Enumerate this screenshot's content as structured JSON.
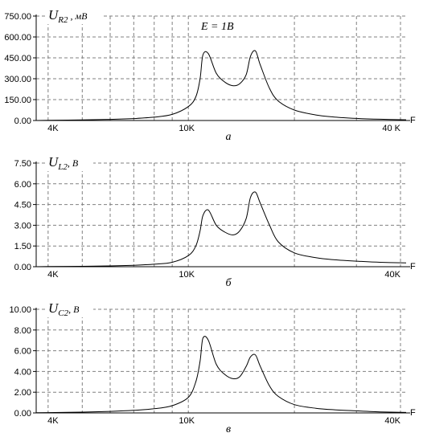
{
  "chart_data": [
    {
      "type": "line",
      "panel_caption": "а",
      "ylabel": {
        "main": "U",
        "sub": "R2",
        "unit": " , мВ"
      },
      "annotation": "E = 1В",
      "xlabel": "F",
      "x_scale": "log",
      "xlim": [
        3700,
        41500
      ],
      "x_tick_labels": [
        {
          "value": 4000,
          "label": "4K"
        },
        {
          "value": 10000,
          "label": "10K"
        },
        {
          "value": 40000,
          "label": "40 K"
        }
      ],
      "x_gridlines": [
        5000,
        6000,
        7000,
        8000,
        9000,
        20000,
        30000
      ],
      "ylim": [
        0,
        750
      ],
      "y_ticks": [
        {
          "value": 0,
          "label": "0.00"
        },
        {
          "value": 150,
          "label": "150.00"
        },
        {
          "value": 300,
          "label": "300.00"
        },
        {
          "value": 450,
          "label": "450.00"
        },
        {
          "value": 600,
          "label": "600.00"
        },
        {
          "value": 750,
          "label": "750.00"
        }
      ],
      "grid": true,
      "series": [
        {
          "x": [
            3700,
            4000,
            5000,
            6000,
            7000,
            8000,
            9000,
            10000,
            10500,
            10800,
            11000,
            11400,
            12000,
            12700,
            13400,
            14000,
            14600,
            15000,
            15500,
            16000,
            17000,
            18000,
            20000,
            23000,
            26000,
            30000,
            35000,
            41500
          ],
          "y": [
            0,
            1,
            4,
            8,
            14,
            24,
            44,
            100,
            170,
            300,
            470,
            480,
            340,
            275,
            250,
            265,
            330,
            460,
            500,
            400,
            230,
            140,
            75,
            40,
            25,
            15,
            9,
            5
          ]
        }
      ]
    },
    {
      "type": "line",
      "panel_caption": "б",
      "ylabel": {
        "main": "U",
        "sub": "L2",
        "unit": ", В"
      },
      "xlabel": "F",
      "x_scale": "log",
      "xlim": [
        3700,
        41500
      ],
      "x_tick_labels": [
        {
          "value": 4000,
          "label": "4K"
        },
        {
          "value": 10000,
          "label": "10K"
        },
        {
          "value": 40000,
          "label": "40K"
        }
      ],
      "x_gridlines": [
        5000,
        6000,
        7000,
        8000,
        9000,
        20000,
        30000
      ],
      "ylim": [
        0,
        7.5
      ],
      "y_ticks": [
        {
          "value": 0,
          "label": "0.00"
        },
        {
          "value": 1.5,
          "label": "1.50"
        },
        {
          "value": 3,
          "label": "3.00"
        },
        {
          "value": 4.5,
          "label": "4.50"
        },
        {
          "value": 6,
          "label": "6.00"
        },
        {
          "value": 7.5,
          "label": "7.50"
        }
      ],
      "grid": true,
      "series": [
        {
          "x": [
            3700,
            4000,
            5000,
            6000,
            7000,
            8000,
            9000,
            10000,
            10500,
            10800,
            11000,
            11400,
            12000,
            12700,
            13400,
            14000,
            14600,
            15000,
            15500,
            16000,
            17000,
            18000,
            20000,
            23000,
            26000,
            30000,
            35000,
            41500
          ],
          "y": [
            0,
            0.01,
            0.03,
            0.06,
            0.1,
            0.18,
            0.32,
            0.8,
            1.5,
            2.6,
            3.7,
            4.1,
            3.0,
            2.5,
            2.3,
            2.6,
            3.5,
            5.0,
            5.4,
            4.6,
            3.0,
            1.8,
            1.0,
            0.65,
            0.5,
            0.4,
            0.32,
            0.28
          ]
        }
      ]
    },
    {
      "type": "line",
      "panel_caption": "в",
      "ylabel": {
        "main": "U",
        "sub": "C2",
        "unit": ", В"
      },
      "xlabel": "F",
      "x_scale": "log",
      "xlim": [
        3700,
        41500
      ],
      "x_tick_labels": [
        {
          "value": 4000,
          "label": "4K"
        },
        {
          "value": 10000,
          "label": "10K"
        },
        {
          "value": 40000,
          "label": "40K"
        }
      ],
      "x_gridlines": [
        5000,
        6000,
        7000,
        8000,
        9000,
        20000,
        30000
      ],
      "ylim": [
        0,
        10
      ],
      "y_ticks": [
        {
          "value": 0,
          "label": "0.00"
        },
        {
          "value": 2,
          "label": "2.00"
        },
        {
          "value": 4,
          "label": "4.00"
        },
        {
          "value": 6,
          "label": "6.00"
        },
        {
          "value": 8,
          "label": "8.00"
        },
        {
          "value": 10,
          "label": "10.00"
        }
      ],
      "grid": true,
      "series": [
        {
          "x": [
            3700,
            4000,
            5000,
            6000,
            7000,
            8000,
            9000,
            10000,
            10500,
            10800,
            11000,
            11400,
            12000,
            12700,
            13400,
            14000,
            14600,
            15000,
            15500,
            16000,
            17000,
            18000,
            20000,
            23000,
            26000,
            30000,
            35000,
            41500
          ],
          "y": [
            0.02,
            0.03,
            0.08,
            0.15,
            0.25,
            0.4,
            0.7,
            1.5,
            3.0,
            5.0,
            7.2,
            7.0,
            4.7,
            3.7,
            3.3,
            3.5,
            4.5,
            5.4,
            5.6,
            4.5,
            2.6,
            1.6,
            0.8,
            0.45,
            0.3,
            0.2,
            0.1,
            0.05
          ]
        }
      ]
    }
  ]
}
